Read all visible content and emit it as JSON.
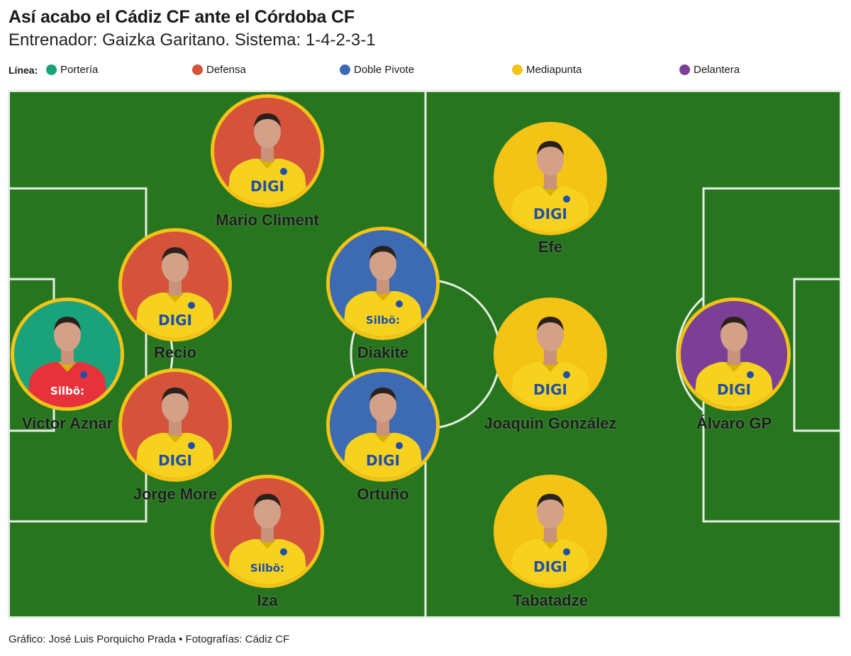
{
  "title": "Así acabo el Cádiz CF ante el Córdoba CF",
  "subtitle": "Entrenador: Gaizka Garitano. Sistema: 1-4-2-3-1",
  "legend": {
    "label": "Línea:",
    "items": [
      {
        "label": "Portería",
        "color": "#1aa37a"
      },
      {
        "label": "Defensa",
        "color": "#d4533a"
      },
      {
        "label": "Doble Pivote",
        "color": "#3d6bb3"
      },
      {
        "label": "Mediapunta",
        "color": "#f3c316"
      },
      {
        "label": "Delantera",
        "color": "#7c3f96"
      }
    ]
  },
  "players": [
    {
      "name": "Victor Aznar",
      "line": "Portería",
      "bg": "#1aa37a",
      "shirt": "#e8323b",
      "sponsor": "Silbö:"
    },
    {
      "name": "Mario Climent",
      "line": "Defensa",
      "bg": "#d4533a",
      "shirt": "#f6d21e",
      "sponsor": "DIGI"
    },
    {
      "name": "Recio",
      "line": "Defensa",
      "bg": "#d4533a",
      "shirt": "#f6d21e",
      "sponsor": "DIGI"
    },
    {
      "name": "Jorge More",
      "line": "Defensa",
      "bg": "#d4533a",
      "shirt": "#f6d21e",
      "sponsor": "DIGI"
    },
    {
      "name": "Iza",
      "line": "Defensa",
      "bg": "#d4533a",
      "shirt": "#f6d21e",
      "sponsor": "Silbö:"
    },
    {
      "name": "Diakite",
      "line": "Doble Pivote",
      "bg": "#3d6bb3",
      "shirt": "#f6d21e",
      "sponsor": "Silbö:"
    },
    {
      "name": "Ortuño",
      "line": "Doble Pivote",
      "bg": "#3d6bb3",
      "shirt": "#f6d21e",
      "sponsor": "DIGI"
    },
    {
      "name": "Efe",
      "line": "Mediapunta",
      "bg": "#f3c316",
      "shirt": "#f6d21e",
      "sponsor": "DIGI"
    },
    {
      "name": "Joaquin González",
      "line": "Mediapunta",
      "bg": "#f3c316",
      "shirt": "#f6d21e",
      "sponsor": "DIGI"
    },
    {
      "name": "Tabatadze",
      "line": "Mediapunta",
      "bg": "#f3c316",
      "shirt": "#f6d21e",
      "sponsor": "DIGI"
    },
    {
      "name": "Álvaro GP",
      "line": "Delantera",
      "bg": "#7c3f96",
      "shirt": "#f6d21e",
      "sponsor": "DIGI"
    }
  ],
  "footer": "Gráfico: José Luis Porquicho Prada • Fotografías: Cádiz CF"
}
